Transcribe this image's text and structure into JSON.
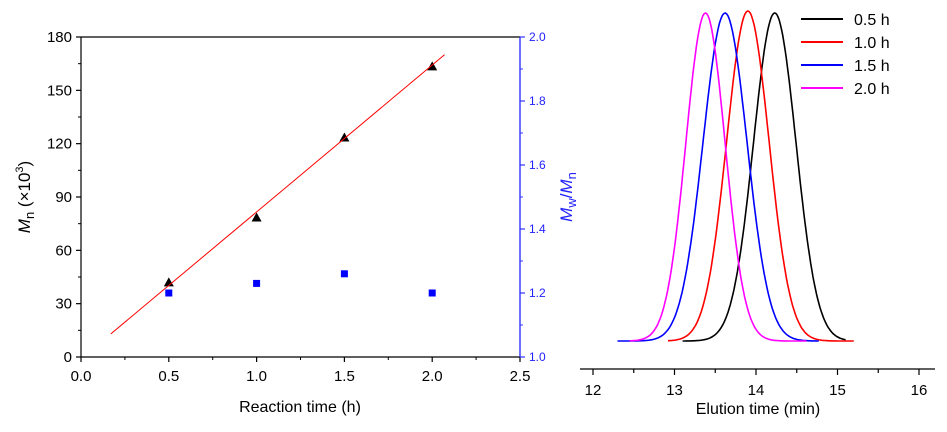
{
  "chart_data": [
    {
      "type": "scatter",
      "title": "",
      "xlabel": "Reaction time (h)",
      "ylabel": "Mn (×10^3)",
      "ylabel_parts": {
        "main": "M",
        "sub": "n",
        "rest": " (×10",
        "sup": "3",
        "close": ")"
      },
      "y2label_parts": {
        "m1": "M",
        "s1": "w",
        "slash": "/",
        "m2": "M",
        "s2": "n"
      },
      "xlim": [
        0,
        2.5
      ],
      "ylim": [
        0,
        180
      ],
      "y2lim": [
        1.0,
        2.0
      ],
      "x_ticks": [
        "0.0",
        "0.5",
        "1.0",
        "1.5",
        "2.0",
        "2.5"
      ],
      "y_ticks": [
        "0",
        "30",
        "60",
        "90",
        "120",
        "150",
        "180"
      ],
      "y2_ticks": [
        "1.0",
        "1.2",
        "1.4",
        "1.6",
        "1.8",
        "2.0"
      ],
      "series": [
        {
          "name": "Mn",
          "axis": "left",
          "marker": "triangle",
          "color": "#000000",
          "x": [
            0.5,
            1.0,
            1.5,
            2.0
          ],
          "y": [
            42,
            78.5,
            123.5,
            163.5
          ]
        },
        {
          "name": "Mw/Mn",
          "axis": "right",
          "marker": "square",
          "color": "#0000ff",
          "x": [
            0.5,
            1.0,
            1.5,
            2.0
          ],
          "y": [
            1.2,
            1.23,
            1.26,
            1.2
          ]
        },
        {
          "name": "linear fit",
          "axis": "left",
          "type": "line",
          "color": "#ff0000",
          "x": [
            0.17,
            2.07
          ],
          "y": [
            13,
            170
          ]
        }
      ],
      "axis_color_right": "#3333ff"
    },
    {
      "type": "line",
      "title": "",
      "xlabel": "Elution time (min)",
      "ylabel": "",
      "xlim": [
        11.9,
        16.2
      ],
      "x_ticks": [
        "12",
        "13",
        "14",
        "15",
        "16"
      ],
      "legend": "top-right",
      "series": [
        {
          "name": "0.5 h",
          "color": "#000000",
          "peak": 14.23,
          "sigma": 0.26,
          "range": [
            13.1,
            15.1
          ]
        },
        {
          "name": "1.0 h",
          "color": "#ff0000",
          "peak": 13.9,
          "sigma": 0.26,
          "range": [
            12.92,
            15.2
          ]
        },
        {
          "name": "1.5 h",
          "color": "#0000ff",
          "peak": 13.62,
          "sigma": 0.27,
          "range": [
            12.3,
            14.77
          ]
        },
        {
          "name": "2.0 h",
          "color": "#ff00ff",
          "peak": 13.38,
          "sigma": 0.24,
          "range": [
            12.45,
            14.62
          ]
        }
      ]
    }
  ]
}
